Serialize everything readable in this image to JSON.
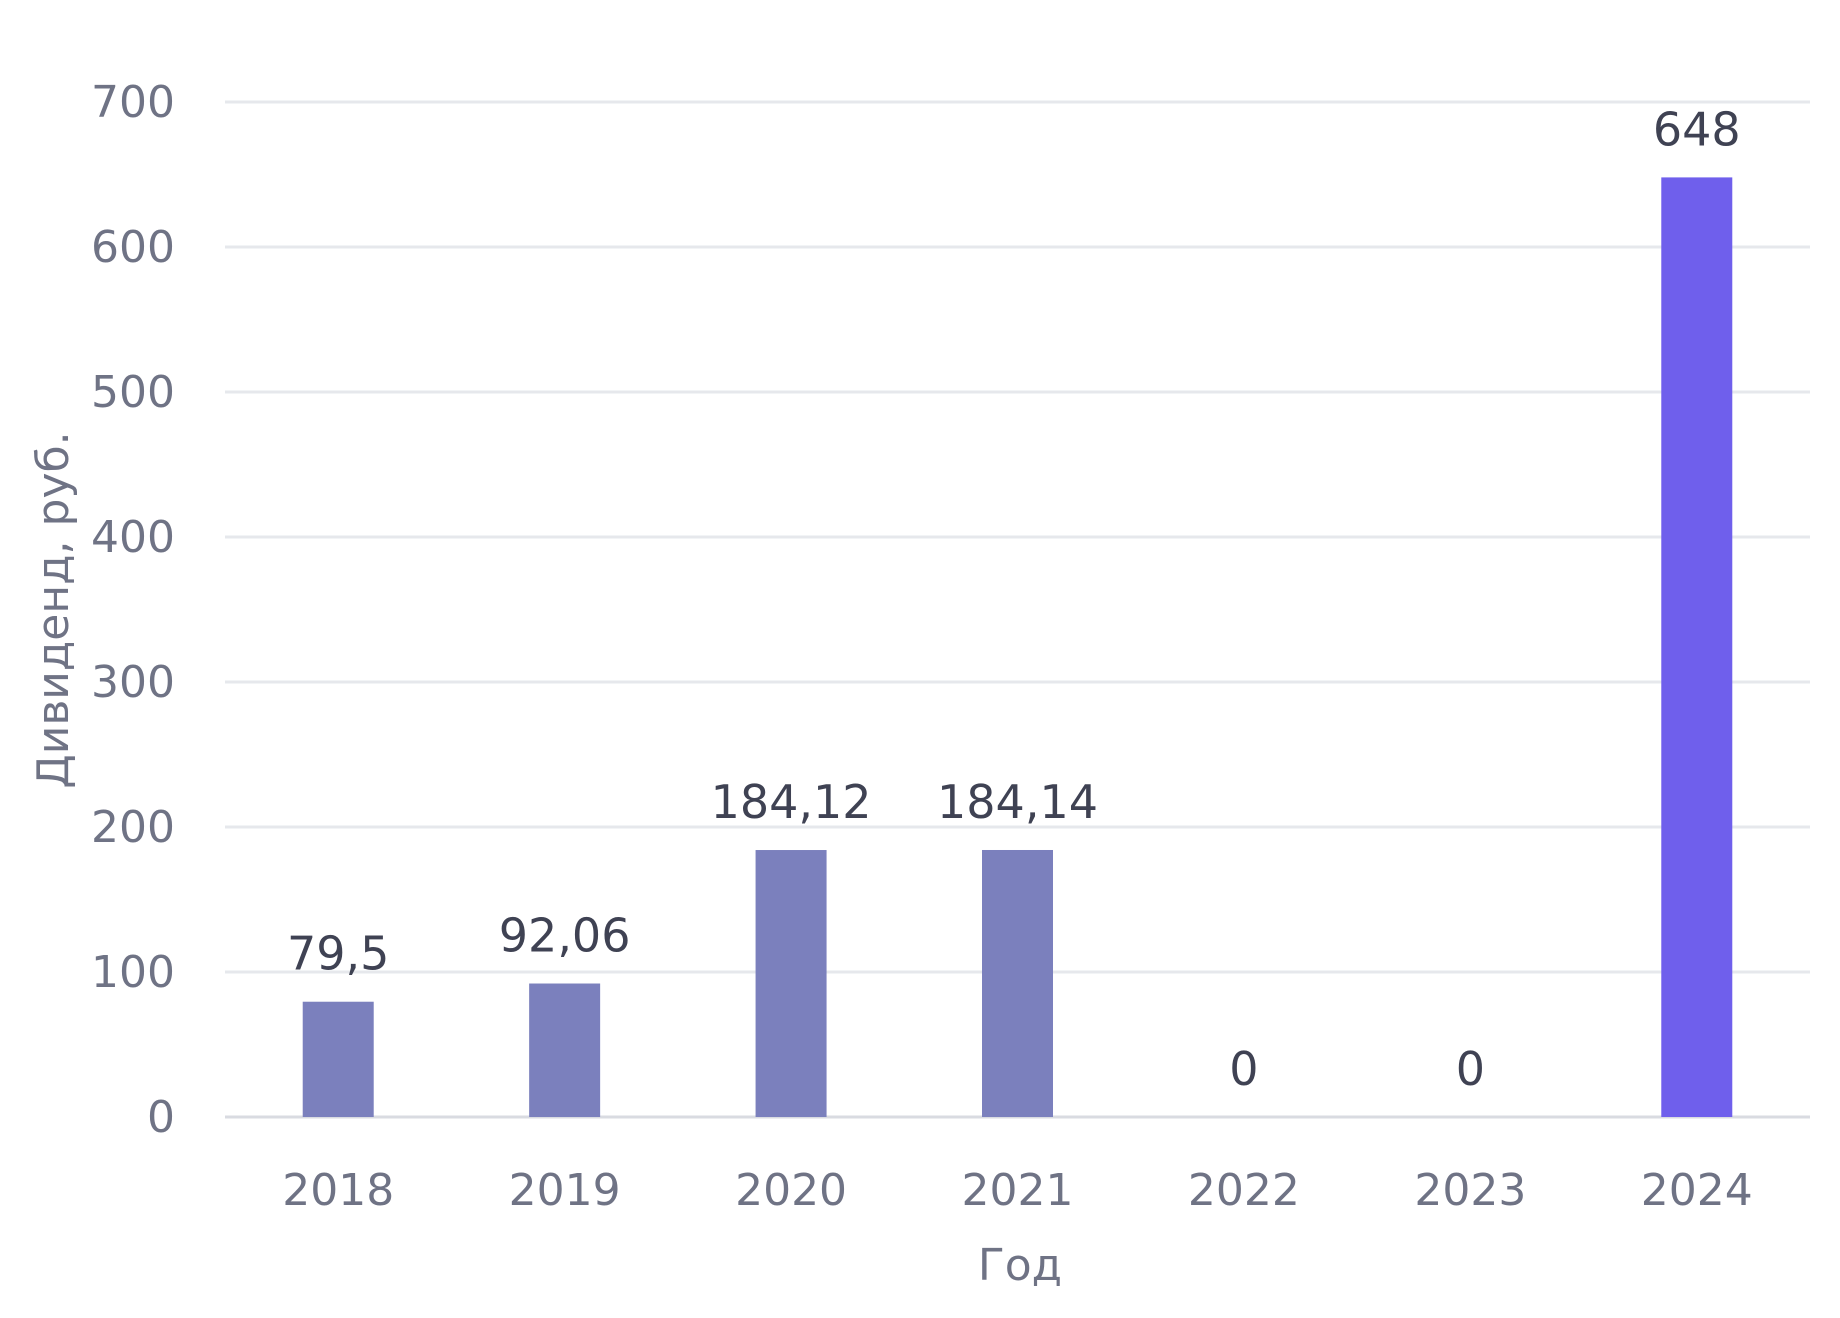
{
  "chart_data": {
    "type": "bar",
    "title": "",
    "xlabel": "Год",
    "ylabel": "Дивиденд, руб.",
    "ylim": [
      0,
      700
    ],
    "yticks": [
      0,
      100,
      200,
      300,
      400,
      500,
      600,
      700
    ],
    "grid": true,
    "categories": [
      "2018",
      "2019",
      "2020",
      "2021",
      "2022",
      "2023",
      "2024"
    ],
    "values": [
      79.5,
      92.06,
      184.12,
      184.14,
      0,
      0,
      648
    ],
    "data_labels": [
      "79,5",
      "92,06",
      "184,12",
      "184,14",
      "0",
      "0",
      "648"
    ],
    "colors": {
      "bar": "#7b80bd",
      "highlight_bar": "#6f5fec",
      "highlight_category": "2024"
    }
  }
}
